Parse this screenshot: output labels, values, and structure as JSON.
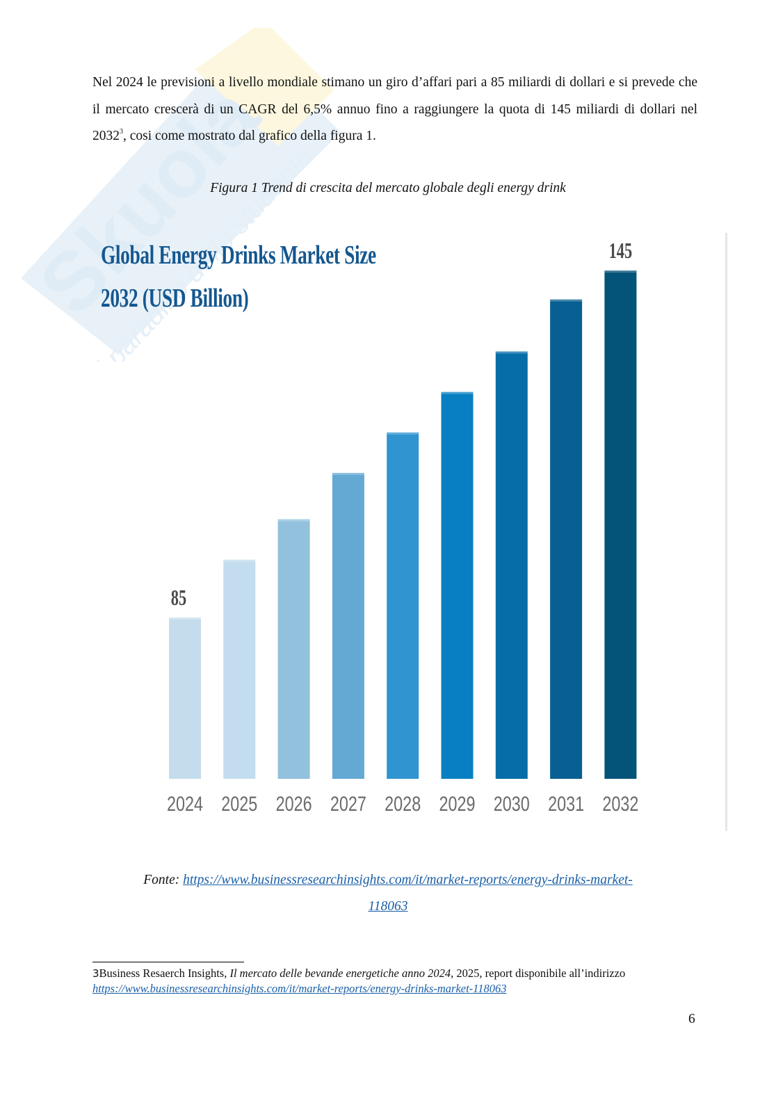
{
  "document": {
    "paragraph": {
      "part1": "Nel 2024 le previsioni a livello mondiale stimano un giro d’affari pari a 85 miliardi di dollari e si prevede che il mercato crescerà di un CAGR del 6,5% annuo fino a raggiungere la quota di 145 miliardi di dollari nel 2032",
      "footnote_ref": "3",
      "part2": ", cosi come mostrato dal grafico della figura 1."
    },
    "figure_caption": "Figura 1 Trend di crescita del mercato globale degli energy drink",
    "source": {
      "label": "Fonte: ",
      "link_text_line1": "https://www.businessresearchinsights.com/it/market-reports/energy-drinks-market-",
      "link_text_line2": "118063"
    },
    "footnote": {
      "number": "3",
      "text_pre": "Business Resaerch Insights, ",
      "text_italic": "Il mercato delle bevande energetiche anno 2024",
      "text_post": ", 2025, report disponibile all’indirizzo",
      "link": "https://www.businessresearchinsights.com/it/market-reports/energy-drinks-market-118063"
    },
    "page_number": "6",
    "watermark": {
      "brand": "Skuola.net",
      "tagline": "il paradiso dello studente",
      "colors": [
        "#bcd6ec",
        "#f6e9a8"
      ]
    }
  },
  "chart_data": {
    "type": "bar",
    "title": "Global Energy Drinks Market Size 2032 (USD Billion)",
    "title_lines": [
      "Global Energy Drinks Market Size",
      "2032 (USD Billion)"
    ],
    "xlabel": "",
    "ylabel": "USD Billion",
    "categories": [
      "2024",
      "2025",
      "2026",
      "2027",
      "2028",
      "2029",
      "2030",
      "2031",
      "2032"
    ],
    "values": [
      85,
      95,
      102,
      110,
      117,
      124,
      131,
      140,
      145
    ],
    "data_labels": {
      "2024": "85",
      "2032": "145"
    },
    "colors": [
      "#c5dcec",
      "#c3ddee",
      "#92c1dd",
      "#64a8d4",
      "#2f94cf",
      "#077fc2",
      "#066da8",
      "#085f91",
      "#045379"
    ],
    "title_color": "#15578f",
    "label_color": "#5a5a5a",
    "grid": false,
    "legend": "none"
  }
}
